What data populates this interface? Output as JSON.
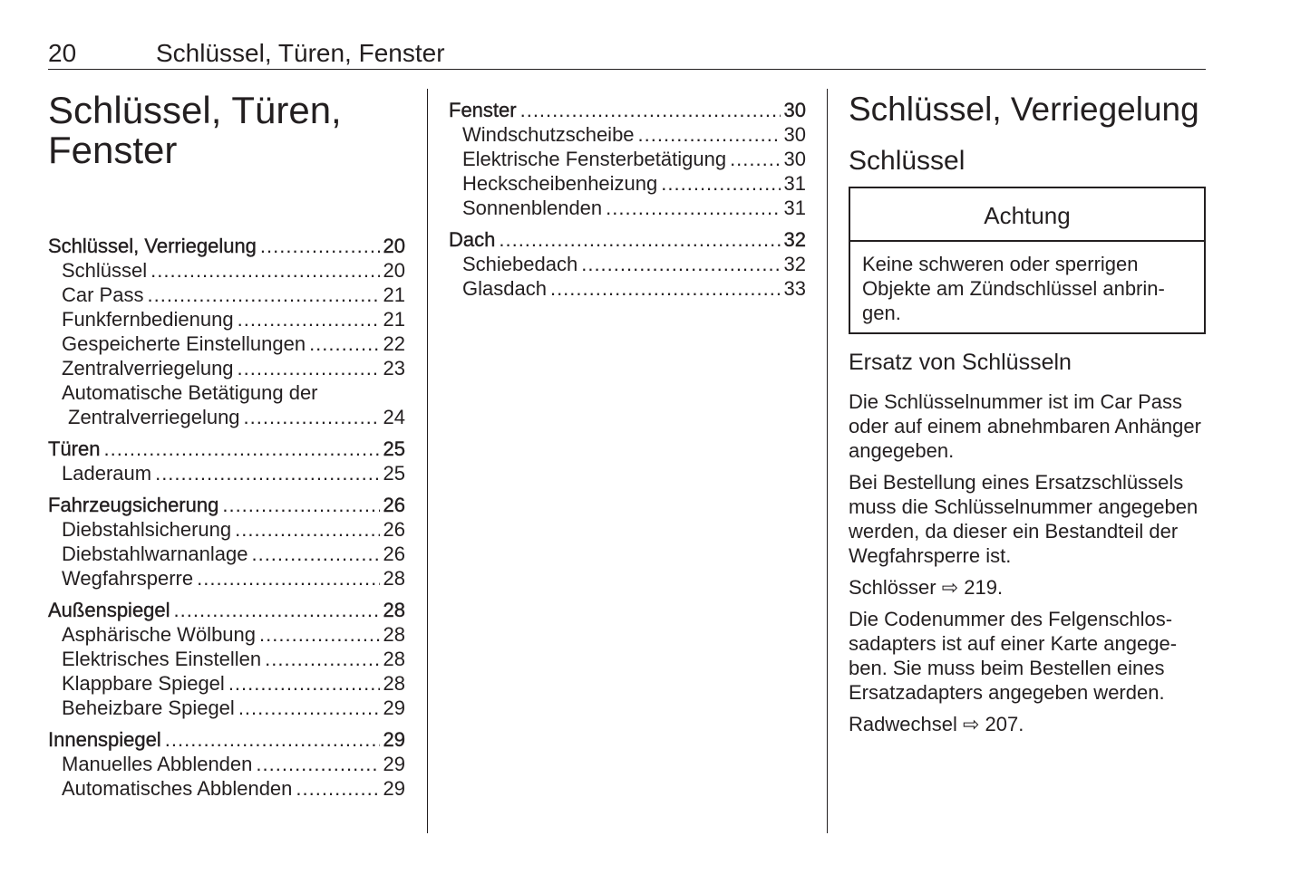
{
  "header": {
    "page_number": "20",
    "running_title": "Schlüssel, Türen, Fenster"
  },
  "chapter_title": "Schlüssel, Türen, Fenster",
  "toc_left": [
    [
      {
        "label": "Schlüssel, Verriegelung",
        "page": "20",
        "level": "main"
      },
      {
        "label": "Schlüssel",
        "page": "20",
        "level": "sub"
      },
      {
        "label": "Car Pass",
        "page": "21",
        "level": "sub"
      },
      {
        "label": "Funkfernbedienung",
        "page": "21",
        "level": "sub"
      },
      {
        "label": "Gespeicherte Einstellungen",
        "page": "22",
        "level": "sub"
      },
      {
        "label": "Zentralverriegelung",
        "page": "23",
        "level": "sub"
      },
      {
        "label": "Automatische Betätigung der",
        "page": "",
        "level": "sub"
      },
      {
        "label": "Zentralverriegelung",
        "page": "24",
        "level": "sub2"
      }
    ],
    [
      {
        "label": "Türen",
        "page": "25",
        "level": "main"
      },
      {
        "label": "Laderaum",
        "page": "25",
        "level": "sub"
      }
    ],
    [
      {
        "label": "Fahrzeugsicherung",
        "page": "26",
        "level": "main"
      },
      {
        "label": "Diebstahlsicherung",
        "page": "26",
        "level": "sub"
      },
      {
        "label": "Diebstahlwarnanlage",
        "page": "26",
        "level": "sub"
      },
      {
        "label": "Wegfahrsperre",
        "page": "28",
        "level": "sub"
      }
    ],
    [
      {
        "label": "Außenspiegel",
        "page": "28",
        "level": "main"
      },
      {
        "label": "Asphärische Wölbung",
        "page": "28",
        "level": "sub"
      },
      {
        "label": "Elektrisches Einstellen",
        "page": "28",
        "level": "sub"
      },
      {
        "label": "Klappbare Spiegel",
        "page": "28",
        "level": "sub"
      },
      {
        "label": "Beheizbare Spiegel",
        "page": "29",
        "level": "sub"
      }
    ],
    [
      {
        "label": "Innenspiegel",
        "page": "29",
        "level": "main"
      },
      {
        "label": "Manuelles Abblenden",
        "page": "29",
        "level": "sub"
      },
      {
        "label": "Automatisches Abblenden",
        "page": "29",
        "level": "sub"
      }
    ]
  ],
  "toc_middle": [
    [
      {
        "label": "Fenster",
        "page": "30",
        "level": "main"
      },
      {
        "label": "Windschutzscheibe",
        "page": "30",
        "level": "sub"
      },
      {
        "label": "Elektrische Fensterbetätigung",
        "page": "30",
        "level": "sub"
      },
      {
        "label": "Heckscheibenheizung",
        "page": "31",
        "level": "sub"
      },
      {
        "label": "Sonnenblenden",
        "page": "31",
        "level": "sub"
      }
    ],
    [
      {
        "label": "Dach",
        "page": "32",
        "level": "main"
      },
      {
        "label": "Schiebedach",
        "page": "32",
        "level": "sub"
      },
      {
        "label": "Glasdach",
        "page": "33",
        "level": "sub"
      }
    ]
  ],
  "right": {
    "section_title": "Schlüssel, Verriegelung",
    "subsection_title": "Schlüssel",
    "caution": {
      "title": "Achtung",
      "text": "Keine schweren oder sperrigen Objekte am Zündschlüssel anbrin­gen."
    },
    "heading": "Ersatz von Schlüsseln",
    "paragraphs": [
      "Die Schlüsselnummer ist im Car Pass oder auf einem abnehmbaren Anhän­ger angegeben.",
      "Bei Bestellung eines Ersatzschlüs­sels muss die Schlüsselnummer angegeben werden, da dieser ein Bestandteil der Wegfahrsperre ist.",
      "Schlösser ⇨ 219.",
      "Die Codenummer des Felgenschlos­sadapters ist auf einer Karte angege­ben. Sie muss beim Bestellen eines Ersatzadapters angegeben werden.",
      "Radwechsel ⇨ 207."
    ]
  }
}
